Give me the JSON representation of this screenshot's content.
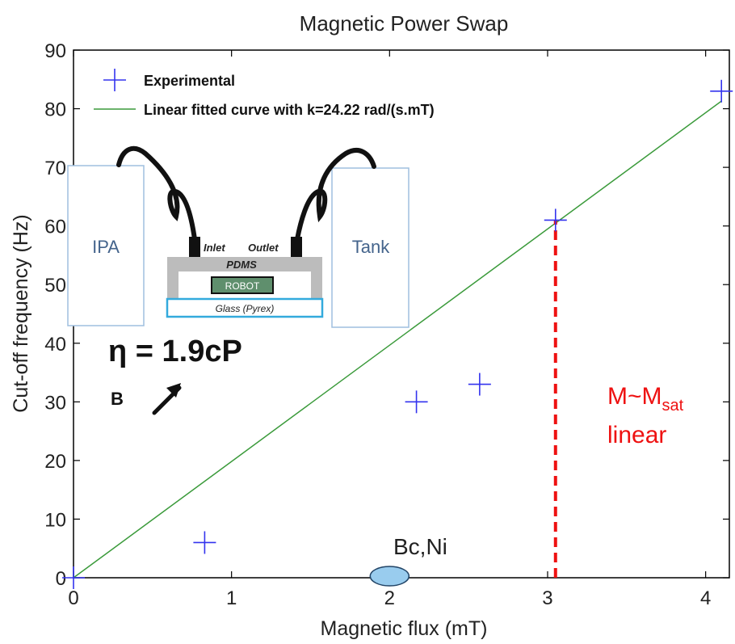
{
  "chart_data": {
    "type": "scatter",
    "title": "Magnetic Power Swap",
    "xlabel": "Magnetic flux (mT)",
    "ylabel": "Cut-off frequency (Hz)",
    "xlim": [
      0,
      4.15
    ],
    "ylim": [
      0,
      90
    ],
    "x_ticks": [
      0,
      1,
      2,
      3,
      4
    ],
    "y_ticks": [
      0,
      10,
      20,
      30,
      40,
      50,
      60,
      70,
      80,
      90
    ],
    "grid": false,
    "legend_position": "top-left",
    "series": [
      {
        "name": "Experimental",
        "kind": "scatter",
        "marker": "plus",
        "color": "#3333ee",
        "x": [
          0,
          0.83,
          2.17,
          2.57,
          3.05,
          4.1
        ],
        "y": [
          0,
          6,
          30,
          33,
          61,
          83
        ]
      },
      {
        "name": "Linear fitted curve with k=24.22 rad/(s.mT)",
        "kind": "line",
        "color": "#3a9a3a",
        "x": [
          0,
          4.1
        ],
        "y": [
          0,
          81.3
        ]
      }
    ],
    "annotations": {
      "eta_label": "η = 1.9cP",
      "b_label": "B",
      "bc_label": "Bc,Ni",
      "bc_x": 2.0,
      "msat_line_x": 3.05,
      "msat_line_color": "#ee1111",
      "msat_text_main": "M~M",
      "msat_text_sub": "sat",
      "msat_text_line2": "linear"
    },
    "inset": {
      "left_box": "IPA",
      "right_box": "Tank",
      "inlet": "Inlet",
      "outlet": "Outlet",
      "pdms": "PDMS",
      "robot": "ROBOT",
      "glass": "Glass (Pyrex)"
    }
  }
}
